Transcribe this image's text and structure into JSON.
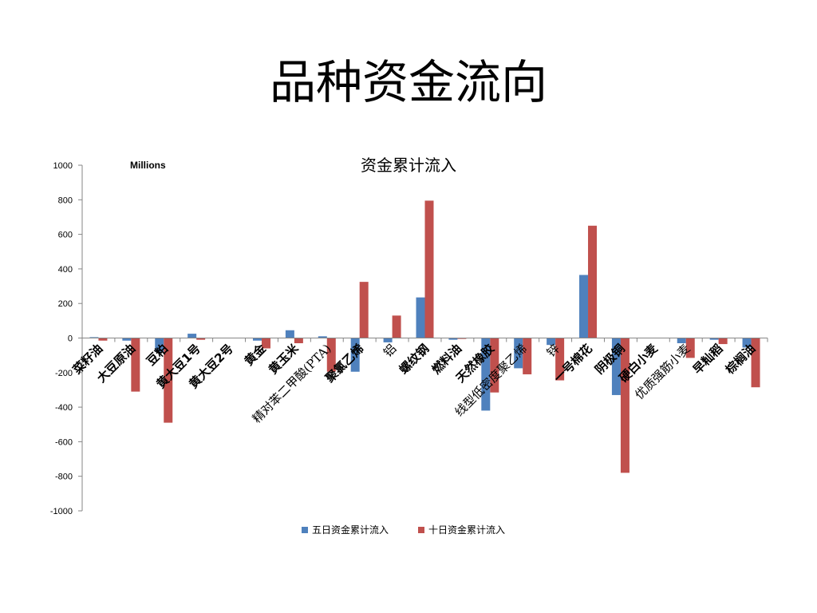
{
  "slide": {
    "title": "品种资金流向"
  },
  "chart_data": {
    "type": "bar",
    "title": "资金累计流入",
    "units_label": "Millions",
    "ylim": [
      -1000,
      1000
    ],
    "y_ticks": [
      "1000",
      "800",
      "600",
      "400",
      "200",
      "0",
      "-200",
      "-400",
      "-600",
      "-800",
      "-1000"
    ],
    "grid": false,
    "legend_position": "bottom",
    "categories": [
      "菜籽油",
      "大豆原油",
      "豆粕",
      "黄大豆1号",
      "黄大豆2号",
      "黄金",
      "黄玉米",
      "精对苯二甲酸(PTA)",
      "聚氯乙烯",
      "铝",
      "螺纹钢",
      "燃料油",
      "天然橡胶",
      "线型低密度聚乙烯",
      "锌",
      "一号棉花",
      "阴极铜",
      "硬白小麦",
      "优质强筋小麦",
      "早籼稻",
      "棕榈油"
    ],
    "serif_categories": [
      "精对苯二甲酸(PTA)",
      "铝",
      "线型低密度聚乙烯",
      "锌",
      "优质强筋小麦"
    ],
    "series": [
      {
        "name": "五日资金累计流入",
        "color": "#4F81BD",
        "values": [
          5,
          -15,
          -80,
          25,
          0,
          -15,
          45,
          10,
          -195,
          -25,
          235,
          -10,
          -420,
          -175,
          -40,
          365,
          -330,
          0,
          -30,
          -10,
          -55
        ]
      },
      {
        "name": "十日资金累计流入",
        "color": "#C0504D",
        "values": [
          -15,
          -310,
          -490,
          -10,
          0,
          -60,
          -30,
          -195,
          325,
          130,
          795,
          -5,
          -315,
          -210,
          -245,
          650,
          -780,
          0,
          -115,
          -35,
          -285
        ]
      }
    ]
  }
}
